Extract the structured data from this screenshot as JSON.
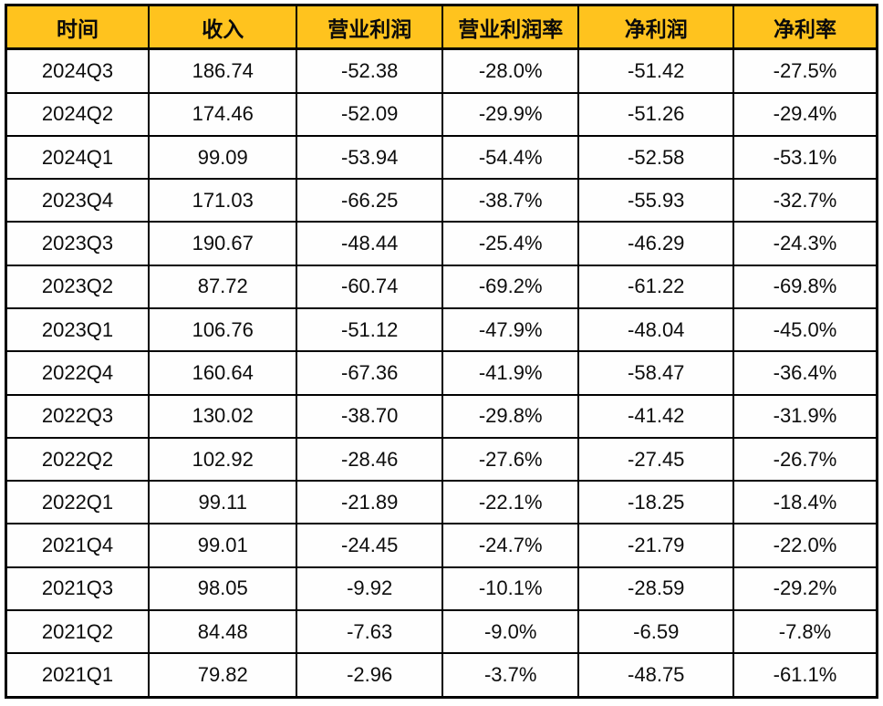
{
  "page": {
    "background_color": "#ffffff"
  },
  "table_style": {
    "header_background": "#ffc31e",
    "header_text_color": "#0a0a0a",
    "body_background": "#fefefe",
    "border_color": "#000000",
    "body_text_color": "#0d0d0d"
  },
  "chart_data": {
    "type": "table",
    "columns": [
      "时间",
      "收入",
      "营业利润",
      "营业利润率",
      "净利润",
      "净利率"
    ],
    "rows": [
      [
        "2024Q3",
        "186.74",
        "-52.38",
        "-28.0%",
        "-51.42",
        "-27.5%"
      ],
      [
        "2024Q2",
        "174.46",
        "-52.09",
        "-29.9%",
        "-51.26",
        "-29.4%"
      ],
      [
        "2024Q1",
        "99.09",
        "-53.94",
        "-54.4%",
        "-52.58",
        "-53.1%"
      ],
      [
        "2023Q4",
        "171.03",
        "-66.25",
        "-38.7%",
        "-55.93",
        "-32.7%"
      ],
      [
        "2023Q3",
        "190.67",
        "-48.44",
        "-25.4%",
        "-46.29",
        "-24.3%"
      ],
      [
        "2023Q2",
        "87.72",
        "-60.74",
        "-69.2%",
        "-61.22",
        "-69.8%"
      ],
      [
        "2023Q1",
        "106.76",
        "-51.12",
        "-47.9%",
        "-48.04",
        "-45.0%"
      ],
      [
        "2022Q4",
        "160.64",
        "-67.36",
        "-41.9%",
        "-58.47",
        "-36.4%"
      ],
      [
        "2022Q3",
        "130.02",
        "-38.70",
        "-29.8%",
        "-41.42",
        "-31.9%"
      ],
      [
        "2022Q2",
        "102.92",
        "-28.46",
        "-27.6%",
        "-27.45",
        "-26.7%"
      ],
      [
        "2022Q1",
        "99.11",
        "-21.89",
        "-22.1%",
        "-18.25",
        "-18.4%"
      ],
      [
        "2021Q4",
        "99.01",
        "-24.45",
        "-24.7%",
        "-21.79",
        "-22.0%"
      ],
      [
        "2021Q3",
        "98.05",
        "-9.92",
        "-10.1%",
        "-28.59",
        "-29.2%"
      ],
      [
        "2021Q2",
        "84.48",
        "-7.63",
        "-9.0%",
        "-6.59",
        "-7.8%"
      ],
      [
        "2021Q1",
        "79.82",
        "-2.96",
        "-3.7%",
        "-48.75",
        "-61.1%"
      ]
    ]
  }
}
